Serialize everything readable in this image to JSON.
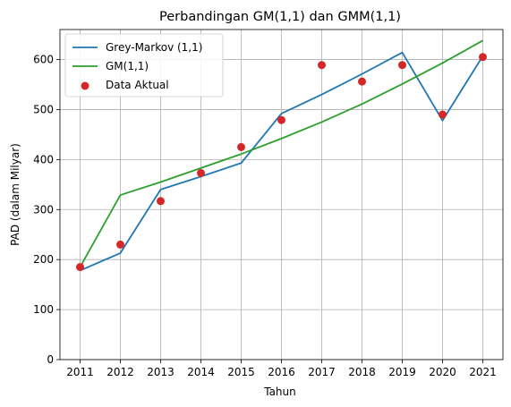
{
  "chart_data": {
    "type": "line",
    "title": "Perbandingan GM(1,1) dan GMM(1,1)",
    "xlabel": "Tahun",
    "ylabel": "PAD (dalam Milyar)",
    "x": [
      2011,
      2012,
      2013,
      2014,
      2015,
      2016,
      2017,
      2018,
      2019,
      2020,
      2021
    ],
    "xticks": [
      "2011",
      "2012",
      "2013",
      "2014",
      "2015",
      "2016",
      "2017",
      "2018",
      "2019",
      "2020",
      "2021"
    ],
    "yticks": [
      0,
      100,
      200,
      300,
      400,
      500,
      600
    ],
    "ylim": [
      0,
      660
    ],
    "grid": true,
    "legend_position": "top-left",
    "series": [
      {
        "name": "Grey-Markov (1,1)",
        "kind": "line",
        "color": "#1f77b4",
        "values": [
          178,
          213,
          340,
          366,
          393,
          492,
          530,
          571,
          614,
          478,
          607
        ]
      },
      {
        "name": "GM(1,1)",
        "kind": "line",
        "color": "#2ca02c",
        "values": [
          185,
          329,
          355,
          383,
          411,
          442,
          475,
          511,
          551,
          593,
          638
        ]
      },
      {
        "name": "Data Aktual",
        "kind": "scatter",
        "color": "#d62728",
        "values": [
          185,
          230,
          317,
          373,
          425,
          479,
          589,
          556,
          589,
          490,
          605
        ]
      }
    ]
  }
}
